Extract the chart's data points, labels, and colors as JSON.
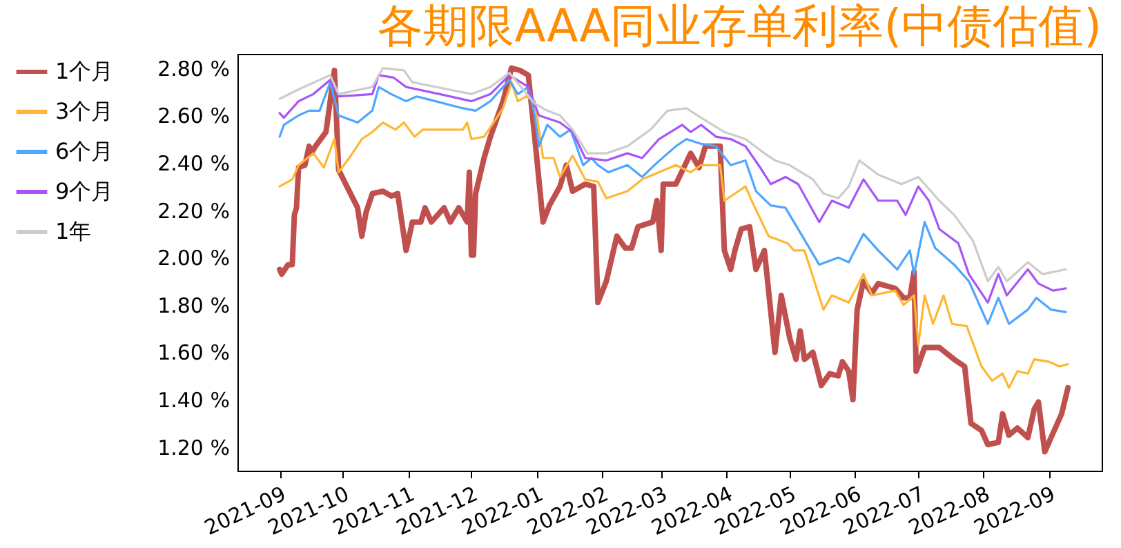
{
  "chart_data": {
    "type": "line",
    "title": "各期限AAA同业存单利率(中债估值)",
    "legend": "left",
    "grid": false,
    "marker": "none",
    "line_style": "solid",
    "xlim": [
      "2021-08-12",
      "2022-09-26"
    ],
    "ylim": [
      1.1,
      2.86
    ],
    "xticks": [
      "2021-09",
      "2021-10",
      "2021-11",
      "2021-12",
      "2022-01",
      "2022-02",
      "2022-03",
      "2022-04",
      "2022-05",
      "2022-06",
      "2022-07",
      "2022-08",
      "2022-09"
    ],
    "yticks": [
      {
        "value": 1.2,
        "label": "1.20 %"
      },
      {
        "value": 1.4,
        "label": "1.40 %"
      },
      {
        "value": 1.6,
        "label": "1.60 %"
      },
      {
        "value": 1.8,
        "label": "1.80 %"
      },
      {
        "value": 2.0,
        "label": "2.00 %"
      },
      {
        "value": 2.2,
        "label": "2.20 %"
      },
      {
        "value": 2.4,
        "label": "2.40 %"
      },
      {
        "value": 2.6,
        "label": "2.60 %"
      },
      {
        "value": 2.8,
        "label": "2.80 %"
      }
    ],
    "series": [
      {
        "name": "1个月",
        "color": "#c0504d",
        "x": [
          "2021-09-01",
          "2021-09-02",
          "2021-09-05",
          "2021-09-07",
          "2021-09-08",
          "2021-09-09",
          "2021-09-10",
          "2021-09-13",
          "2021-09-15",
          "2021-09-16",
          "2021-09-18",
          "2021-09-23",
          "2021-09-25",
          "2021-09-27",
          "2021-09-29",
          "2021-10-08",
          "2021-10-10",
          "2021-10-12",
          "2021-10-15",
          "2021-10-20",
          "2021-10-24",
          "2021-10-27",
          "2021-10-31",
          "2021-11-03",
          "2021-11-07",
          "2021-11-09",
          "2021-11-12",
          "2021-11-18",
          "2021-11-21",
          "2021-11-25",
          "2021-11-29",
          "2021-11-30",
          "2021-12-01",
          "2021-12-02",
          "2021-12-03",
          "2021-12-07",
          "2021-12-10",
          "2021-12-16",
          "2021-12-20",
          "2021-12-24",
          "2021-12-28",
          "2021-12-31",
          "2022-01-04",
          "2022-01-07",
          "2022-01-12",
          "2022-01-15",
          "2022-01-18",
          "2022-01-24",
          "2022-01-28",
          "2022-01-30",
          "2022-02-03",
          "2022-02-08",
          "2022-02-12",
          "2022-02-15",
          "2022-02-18",
          "2022-02-25",
          "2022-02-27",
          "2022-03-01",
          "2022-03-02",
          "2022-03-08",
          "2022-03-15",
          "2022-03-19",
          "2022-03-22",
          "2022-03-29",
          "2022-03-31",
          "2022-04-03",
          "2022-04-05",
          "2022-04-08",
          "2022-04-12",
          "2022-04-15",
          "2022-04-19",
          "2022-04-24",
          "2022-04-27",
          "2022-05-01",
          "2022-05-04",
          "2022-05-06",
          "2022-05-08",
          "2022-05-12",
          "2022-05-16",
          "2022-05-20",
          "2022-05-24",
          "2022-05-26",
          "2022-05-29",
          "2022-05-31",
          "2022-06-02",
          "2022-06-05",
          "2022-06-09",
          "2022-06-12",
          "2022-06-20",
          "2022-06-24",
          "2022-06-27",
          "2022-06-29",
          "2022-06-30",
          "2022-07-04",
          "2022-07-11",
          "2022-07-18",
          "2022-07-23",
          "2022-07-26",
          "2022-07-31",
          "2022-08-03",
          "2022-08-08",
          "2022-08-10",
          "2022-08-13",
          "2022-08-17",
          "2022-08-22",
          "2022-08-25",
          "2022-08-27",
          "2022-08-30",
          "2022-09-02",
          "2022-09-07",
          "2022-09-10"
        ],
        "values": [
          1.95,
          1.93,
          1.97,
          1.97,
          2.18,
          2.21,
          2.38,
          2.39,
          2.47,
          2.44,
          2.47,
          2.53,
          2.66,
          2.79,
          2.37,
          2.21,
          2.09,
          2.19,
          2.27,
          2.28,
          2.26,
          2.27,
          2.03,
          2.15,
          2.15,
          2.21,
          2.15,
          2.21,
          2.15,
          2.21,
          2.15,
          2.36,
          2.01,
          2.01,
          2.27,
          2.42,
          2.51,
          2.66,
          2.8,
          2.79,
          2.77,
          2.51,
          2.15,
          2.22,
          2.3,
          2.39,
          2.28,
          2.31,
          2.3,
          1.81,
          1.9,
          2.09,
          2.04,
          2.04,
          2.13,
          2.15,
          2.24,
          2.03,
          2.31,
          2.31,
          2.44,
          2.38,
          2.47,
          2.47,
          2.03,
          1.95,
          2.03,
          2.12,
          2.13,
          1.95,
          2.03,
          1.6,
          1.84,
          1.66,
          1.57,
          1.69,
          1.57,
          1.6,
          1.46,
          1.51,
          1.5,
          1.56,
          1.52,
          1.4,
          1.78,
          1.9,
          1.85,
          1.89,
          1.87,
          1.83,
          1.83,
          1.94,
          1.52,
          1.62,
          1.62,
          1.57,
          1.54,
          1.3,
          1.27,
          1.21,
          1.22,
          1.34,
          1.25,
          1.28,
          1.24,
          1.36,
          1.39,
          1.18,
          1.24,
          1.34,
          1.45
        ]
      },
      {
        "name": "3个月",
        "color": "#ffb732",
        "x": [
          "2021-09-01",
          "2021-09-07",
          "2021-09-10",
          "2021-09-17",
          "2021-09-22",
          "2021-09-27",
          "2021-09-29",
          "2021-10-04",
          "2021-10-10",
          "2021-10-15",
          "2021-10-20",
          "2021-10-26",
          "2021-10-30",
          "2021-11-04",
          "2021-11-08",
          "2021-11-27",
          "2021-11-29",
          "2021-12-01",
          "2021-12-07",
          "2021-12-16",
          "2021-12-20",
          "2021-12-23",
          "2021-12-27",
          "2021-12-31",
          "2022-01-04",
          "2022-01-09",
          "2022-01-12",
          "2022-01-18",
          "2022-01-24",
          "2022-01-30",
          "2022-02-03",
          "2022-02-13",
          "2022-02-20",
          "2022-02-28",
          "2022-03-08",
          "2022-03-15",
          "2022-03-20",
          "2022-03-29",
          "2022-03-31",
          "2022-04-05",
          "2022-04-10",
          "2022-04-14",
          "2022-04-21",
          "2022-04-30",
          "2022-05-03",
          "2022-05-08",
          "2022-05-17",
          "2022-05-21",
          "2022-05-29",
          "2022-06-05",
          "2022-06-09",
          "2022-06-20",
          "2022-06-24",
          "2022-06-29",
          "2022-07-01",
          "2022-07-04",
          "2022-07-08",
          "2022-07-13",
          "2022-07-17",
          "2022-07-24",
          "2022-07-31",
          "2022-08-05",
          "2022-08-10",
          "2022-08-13",
          "2022-08-17",
          "2022-08-22",
          "2022-08-25",
          "2022-09-01",
          "2022-09-06",
          "2022-09-10"
        ],
        "values": [
          2.3,
          2.33,
          2.39,
          2.44,
          2.38,
          2.5,
          2.36,
          2.42,
          2.5,
          2.53,
          2.57,
          2.54,
          2.57,
          2.51,
          2.54,
          2.54,
          2.57,
          2.5,
          2.51,
          2.63,
          2.74,
          2.66,
          2.68,
          2.66,
          2.42,
          2.42,
          2.34,
          2.43,
          2.33,
          2.32,
          2.25,
          2.28,
          2.33,
          2.36,
          2.39,
          2.36,
          2.39,
          2.39,
          2.24,
          2.27,
          2.3,
          2.22,
          2.09,
          2.06,
          2.03,
          2.03,
          1.78,
          1.84,
          1.81,
          1.93,
          1.84,
          1.86,
          1.8,
          1.84,
          1.63,
          1.84,
          1.72,
          1.84,
          1.72,
          1.71,
          1.54,
          1.48,
          1.51,
          1.45,
          1.52,
          1.51,
          1.57,
          1.56,
          1.54,
          1.55
        ]
      },
      {
        "name": "6个月",
        "color": "#4da6ff",
        "x": [
          "2021-09-01",
          "2021-09-03",
          "2021-09-10",
          "2021-09-15",
          "2021-09-20",
          "2021-09-25",
          "2021-09-29",
          "2021-10-08",
          "2021-10-15",
          "2021-10-18",
          "2021-10-24",
          "2021-10-31",
          "2021-11-05",
          "2021-11-14",
          "2021-11-27",
          "2021-12-03",
          "2021-12-10",
          "2021-12-19",
          "2021-12-23",
          "2021-12-28",
          "2021-12-31",
          "2022-01-02",
          "2022-01-06",
          "2022-01-12",
          "2022-01-17",
          "2022-01-23",
          "2022-01-27",
          "2022-01-30",
          "2022-02-04",
          "2022-02-13",
          "2022-02-20",
          "2022-02-27",
          "2022-03-08",
          "2022-03-13",
          "2022-03-20",
          "2022-03-27",
          "2022-04-03",
          "2022-04-10",
          "2022-04-15",
          "2022-04-22",
          "2022-04-29",
          "2022-05-03",
          "2022-05-15",
          "2022-05-24",
          "2022-05-29",
          "2022-06-05",
          "2022-06-12",
          "2022-06-21",
          "2022-06-27",
          "2022-06-29",
          "2022-07-04",
          "2022-07-09",
          "2022-07-18",
          "2022-07-25",
          "2022-08-03",
          "2022-08-08",
          "2022-08-13",
          "2022-08-22",
          "2022-08-26",
          "2022-09-02",
          "2022-09-09"
        ],
        "values": [
          2.51,
          2.56,
          2.6,
          2.62,
          2.62,
          2.74,
          2.6,
          2.57,
          2.62,
          2.72,
          2.69,
          2.66,
          2.68,
          2.66,
          2.63,
          2.62,
          2.66,
          2.75,
          2.69,
          2.72,
          2.6,
          2.47,
          2.56,
          2.51,
          2.54,
          2.39,
          2.42,
          2.39,
          2.36,
          2.39,
          2.34,
          2.4,
          2.47,
          2.5,
          2.48,
          2.47,
          2.39,
          2.41,
          2.28,
          2.22,
          2.21,
          2.15,
          1.97,
          2.0,
          1.98,
          2.1,
          2.03,
          1.95,
          2.03,
          1.93,
          2.15,
          2.04,
          1.97,
          1.9,
          1.72,
          1.83,
          1.72,
          1.78,
          1.83,
          1.78,
          1.77
        ]
      },
      {
        "name": "9个月",
        "color": "#a855f7",
        "x": [
          "2021-09-01",
          "2021-09-03",
          "2021-09-10",
          "2021-09-17",
          "2021-09-25",
          "2021-09-29",
          "2021-10-15",
          "2021-10-18",
          "2021-10-25",
          "2021-10-31",
          "2021-11-16",
          "2021-12-01",
          "2021-12-10",
          "2021-12-19",
          "2021-12-28",
          "2022-01-02",
          "2022-01-12",
          "2022-01-18",
          "2022-01-24",
          "2022-02-03",
          "2022-02-13",
          "2022-02-20",
          "2022-02-28",
          "2022-03-11",
          "2022-03-15",
          "2022-03-20",
          "2022-03-27",
          "2022-04-03",
          "2022-04-10",
          "2022-04-17",
          "2022-04-22",
          "2022-04-29",
          "2022-05-05",
          "2022-05-15",
          "2022-05-21",
          "2022-05-29",
          "2022-06-05",
          "2022-06-12",
          "2022-06-21",
          "2022-06-25",
          "2022-07-01",
          "2022-07-06",
          "2022-07-11",
          "2022-07-20",
          "2022-07-25",
          "2022-08-03",
          "2022-08-08",
          "2022-08-12",
          "2022-08-22",
          "2022-08-27",
          "2022-09-03",
          "2022-09-09"
        ],
        "values": [
          2.61,
          2.59,
          2.66,
          2.69,
          2.75,
          2.68,
          2.69,
          2.77,
          2.76,
          2.72,
          2.69,
          2.66,
          2.69,
          2.77,
          2.72,
          2.6,
          2.57,
          2.53,
          2.42,
          2.41,
          2.44,
          2.42,
          2.5,
          2.56,
          2.53,
          2.56,
          2.51,
          2.5,
          2.47,
          2.38,
          2.31,
          2.34,
          2.31,
          2.15,
          2.24,
          2.21,
          2.33,
          2.24,
          2.24,
          2.18,
          2.3,
          2.24,
          2.12,
          2.06,
          1.93,
          1.81,
          1.93,
          1.84,
          1.95,
          1.89,
          1.86,
          1.87
        ]
      },
      {
        "name": "1年",
        "color": "#cccccc",
        "x": [
          "2021-09-01",
          "2021-09-10",
          "2021-09-25",
          "2021-09-29",
          "2021-10-15",
          "2021-10-20",
          "2021-10-30",
          "2021-11-03",
          "2021-11-20",
          "2021-12-01",
          "2021-12-10",
          "2021-12-19",
          "2021-12-31",
          "2022-01-06",
          "2022-01-12",
          "2022-01-18",
          "2022-01-25",
          "2022-02-03",
          "2022-02-13",
          "2022-02-24",
          "2022-03-04",
          "2022-03-13",
          "2022-03-20",
          "2022-03-31",
          "2022-04-10",
          "2022-04-19",
          "2022-04-24",
          "2022-05-01",
          "2022-05-12",
          "2022-05-17",
          "2022-05-24",
          "2022-05-29",
          "2022-06-03",
          "2022-06-12",
          "2022-06-23",
          "2022-07-01",
          "2022-07-11",
          "2022-07-18",
          "2022-07-27",
          "2022-08-03",
          "2022-08-08",
          "2022-08-12",
          "2022-08-22",
          "2022-08-29",
          "2022-09-09"
        ],
        "values": [
          2.67,
          2.71,
          2.77,
          2.69,
          2.72,
          2.8,
          2.79,
          2.74,
          2.71,
          2.69,
          2.72,
          2.78,
          2.65,
          2.62,
          2.6,
          2.54,
          2.44,
          2.44,
          2.47,
          2.54,
          2.62,
          2.63,
          2.59,
          2.53,
          2.5,
          2.44,
          2.41,
          2.39,
          2.33,
          2.27,
          2.25,
          2.3,
          2.41,
          2.35,
          2.31,
          2.34,
          2.24,
          2.18,
          2.07,
          1.9,
          1.96,
          1.9,
          1.98,
          1.93,
          1.95
        ]
      }
    ]
  }
}
